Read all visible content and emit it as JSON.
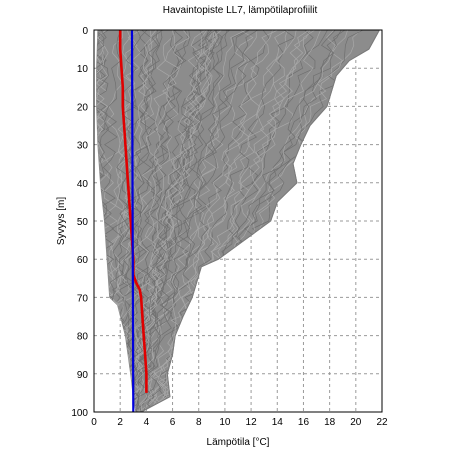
{
  "chart_data": {
    "type": "line",
    "title": "Havaintopiste LL7, lämpötilaprofiilit",
    "xlabel": "Lämpötila [°C]",
    "ylabel": "Syvyys [m]",
    "xlim": [
      0,
      22
    ],
    "ylim": [
      0,
      100
    ],
    "y_inverted": true,
    "grid": true,
    "x_ticks": [
      "0",
      "2",
      "4",
      "6",
      "8",
      "10",
      "12",
      "14",
      "16",
      "18",
      "20",
      "22"
    ],
    "y_ticks": [
      "0",
      "10",
      "20",
      "30",
      "40",
      "50",
      "60",
      "70",
      "80",
      "90",
      "100"
    ],
    "colors": {
      "profiles": "#8c8c8c",
      "mean": "#e00000",
      "reference": "#0000dd",
      "grid": "#9a9a9a"
    },
    "envelope": {
      "name": "profiles",
      "left": [
        [
          0,
          0.3
        ],
        [
          10,
          0.2
        ],
        [
          20,
          0.2
        ],
        [
          30,
          0.3
        ],
        [
          40,
          0.5
        ],
        [
          50,
          0.8
        ],
        [
          60,
          1.0
        ],
        [
          70,
          1.2
        ],
        [
          72,
          1.8
        ],
        [
          80,
          2.4
        ],
        [
          90,
          2.8
        ],
        [
          96,
          3.0
        ],
        [
          100,
          3.2
        ]
      ],
      "right": [
        [
          0,
          21.8
        ],
        [
          5,
          21.0
        ],
        [
          8,
          19.5
        ],
        [
          12,
          18.5
        ],
        [
          20,
          17.8
        ],
        [
          25,
          16.5
        ],
        [
          30,
          15.8
        ],
        [
          35,
          15.2
        ],
        [
          40,
          15.5
        ],
        [
          45,
          14.0
        ],
        [
          50,
          13.5
        ],
        [
          55,
          11.5
        ],
        [
          60,
          9.5
        ],
        [
          62,
          8.2
        ],
        [
          70,
          7.5
        ],
        [
          75,
          6.8
        ],
        [
          80,
          6.2
        ],
        [
          85,
          6.0
        ],
        [
          90,
          5.6
        ],
        [
          96,
          5.8
        ],
        [
          100,
          3.6
        ]
      ]
    },
    "series": [
      {
        "x": [
          2.0,
          2.0,
          2.1,
          2.2,
          2.2,
          2.3,
          2.4,
          2.5,
          2.6,
          2.7,
          2.8,
          2.9,
          3.0,
          3.0,
          3.2,
          3.5,
          3.6,
          3.7,
          3.8,
          3.9,
          4.0,
          4.0
        ],
        "y": [
          0,
          5,
          10,
          15,
          20,
          25,
          30,
          35,
          40,
          45,
          50,
          55,
          60,
          64,
          66,
          68,
          70,
          75,
          80,
          85,
          90,
          95
        ]
      },
      {
        "x": [
          2.9,
          3.0
        ],
        "y": [
          0,
          100
        ]
      }
    ]
  }
}
